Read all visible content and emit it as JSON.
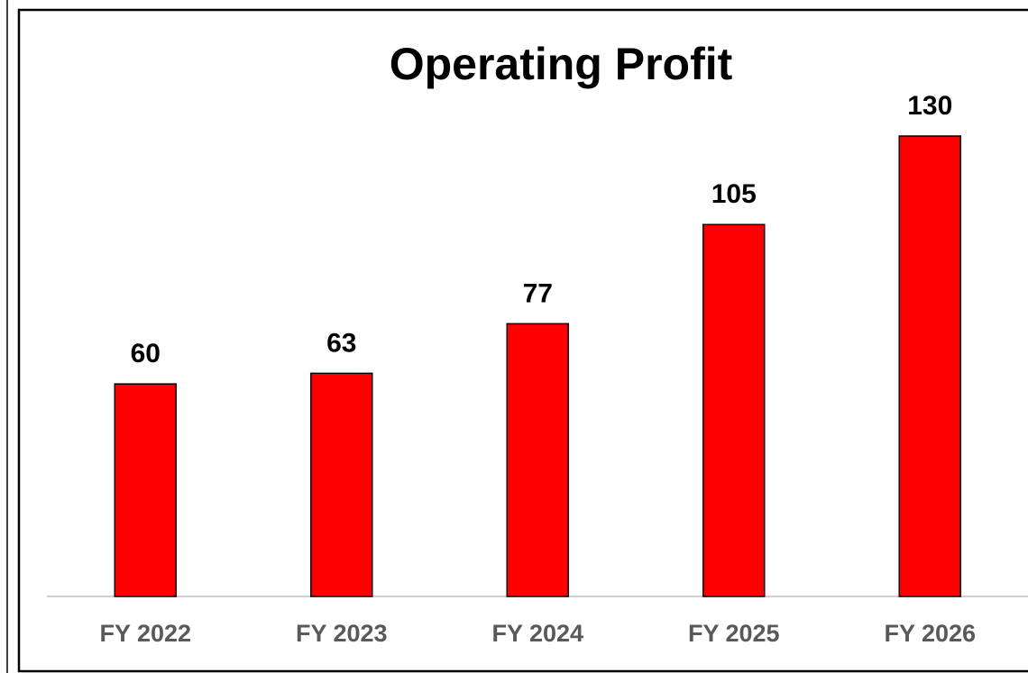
{
  "chart_data": {
    "type": "bar",
    "title": "Operating Profit",
    "categories": [
      "FY 2022",
      "FY 2023",
      "FY 2024",
      "FY 2025",
      "FY 2026"
    ],
    "values": [
      60,
      63,
      77,
      105,
      130
    ],
    "color": "#ff0000"
  }
}
